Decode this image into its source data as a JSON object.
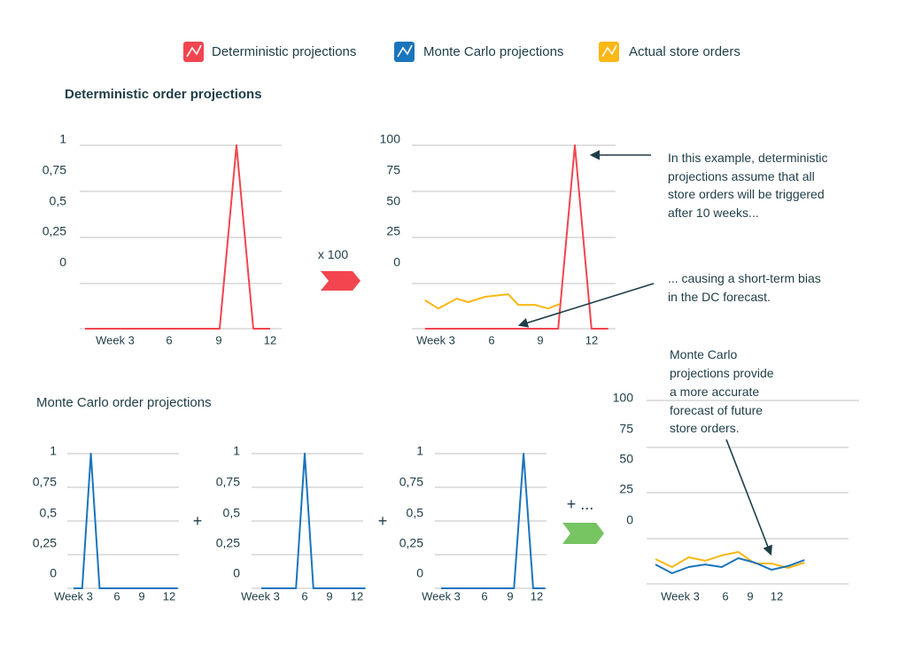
{
  "legend": [
    {
      "label": "Deterministic projections",
      "color": "#f2454f",
      "icon": "line-chart-icon"
    },
    {
      "label": "Monte Carlo projections",
      "color": "#1a75bc",
      "icon": "line-chart-icon"
    },
    {
      "label": "Actual store orders",
      "color": "#fbb714",
      "icon": "line-chart-icon"
    }
  ],
  "titles": {
    "deterministic": "Deterministic order projections",
    "monte_carlo": "Monte Carlo order projections"
  },
  "operators": {
    "multiply": "x 100",
    "plus": "+",
    "plus_more": "+ ..."
  },
  "arrow_colors": {
    "multiply": "#f2454f",
    "sum": "#76c462"
  },
  "annotations": {
    "deterministic_peak": [
      "In this example, deterministic",
      "projections assume that all",
      "store orders will be triggered",
      "after 10 weeks..."
    ],
    "bias": [
      "... causing a short-term bias",
      "in the DC forecast."
    ],
    "monte_carlo": [
      "Monte Carlo",
      "projections provide",
      "a more accurate",
      "forecast of future",
      "store orders."
    ]
  },
  "chart_data": [
    {
      "id": "det",
      "type": "line",
      "ylabels": [
        "1",
        "0,75",
        "0,5",
        "0,25",
        "0"
      ],
      "xlabels": [
        "Week 3",
        "6",
        "9",
        "12"
      ],
      "ylim": [
        0,
        1
      ],
      "series": [
        {
          "color": "#f2454f",
          "x": [
            1,
            9,
            10,
            11,
            12
          ],
          "y": [
            0,
            0,
            1,
            0,
            0
          ]
        }
      ]
    },
    {
      "id": "det100",
      "type": "line",
      "ylabels": [
        "100",
        "75",
        "50",
        "25",
        "0"
      ],
      "xlabels": [
        "Week 3",
        "6",
        "9",
        "12"
      ],
      "ylim": [
        0,
        100
      ],
      "series": [
        {
          "color": "#f2454f",
          "x": [
            2,
            10,
            11,
            12,
            13
          ],
          "y": [
            0,
            0,
            100,
            0,
            0
          ]
        },
        {
          "color": "#fbb714",
          "x": [
            2.0,
            2.8,
            3.9,
            4.6,
            5.6,
            7.0,
            7.6,
            8.6,
            9.4,
            10.1
          ],
          "y": [
            15.5,
            11,
            16.4,
            14.5,
            17.4,
            18.8,
            13,
            13,
            11,
            13.5
          ]
        }
      ]
    },
    {
      "id": "mcA",
      "type": "line",
      "ylabels": [
        "1",
        "0,75",
        "0,5",
        "0,25",
        "0"
      ],
      "xlabels": [
        "Week 3",
        "6",
        "9",
        "12"
      ],
      "ylim": [
        0,
        1
      ],
      "series": [
        {
          "color": "#1a75bc",
          "x": [
            1,
            2,
            3,
            4,
            13
          ],
          "y": [
            0,
            0,
            1,
            0,
            0
          ]
        }
      ]
    },
    {
      "id": "mcB",
      "type": "line",
      "ylabels": [
        "1",
        "0,75",
        "0,5",
        "0,25",
        "0"
      ],
      "xlabels": [
        "Week 3",
        "6",
        "9",
        "12"
      ],
      "ylim": [
        0,
        1
      ],
      "series": [
        {
          "color": "#1a75bc",
          "x": [
            1,
            5,
            6,
            7,
            13
          ],
          "y": [
            0,
            0,
            1,
            0,
            0
          ]
        }
      ]
    },
    {
      "id": "mcC",
      "type": "line",
      "ylabels": [
        "1",
        "0,75",
        "0,5",
        "0,25",
        "0"
      ],
      "xlabels": [
        "Week 3",
        "6",
        "9",
        "12"
      ],
      "ylim": [
        0,
        1
      ],
      "series": [
        {
          "color": "#1a75bc",
          "x": [
            1,
            9.4,
            10.5,
            11.6,
            13
          ],
          "y": [
            0,
            0,
            1,
            0,
            0
          ]
        }
      ]
    },
    {
      "id": "mcSum",
      "type": "line",
      "ylabels": [
        "100",
        "75",
        "50",
        "25",
        "0"
      ],
      "xlabels": [
        "Week 3",
        "6",
        "9",
        "12"
      ],
      "ylim": [
        0,
        100
      ],
      "series": [
        {
          "color": "#fbb714",
          "x": [
            1,
            2,
            3,
            4,
            5,
            6,
            7,
            8,
            9,
            10
          ],
          "y": [
            13.5,
            9.2,
            14.5,
            12.6,
            15.5,
            17.4,
            11.1,
            11.1,
            8.7,
            11.6
          ]
        },
        {
          "color": "#1a75bc",
          "x": [
            1,
            2,
            3,
            4,
            5,
            6,
            7,
            8,
            9,
            10
          ],
          "y": [
            10.6,
            5.8,
            9.2,
            10.6,
            9.2,
            14,
            11.6,
            7.7,
            9.7,
            13
          ]
        }
      ]
    }
  ]
}
